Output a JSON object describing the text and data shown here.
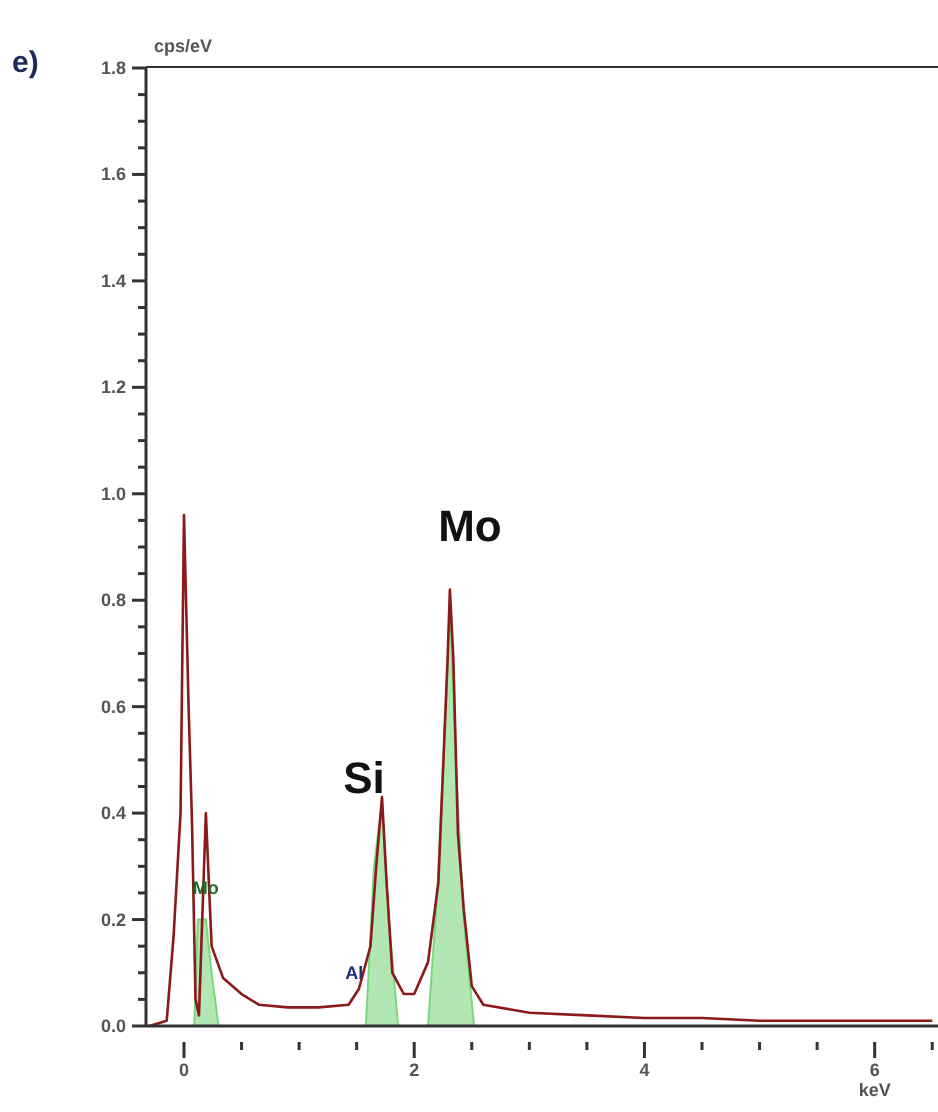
{
  "chart_data": {
    "type": "line",
    "xlabel": "keV",
    "ylabel": "cps/eV",
    "annotations": [
      "e)",
      {
        "text": "Mo",
        "x": 2.31,
        "y": 0.82
      },
      {
        "text": "Si",
        "x": 1.72,
        "y": 0.43
      },
      {
        "text": "Mo",
        "x": 0.19,
        "y": 0.26
      },
      {
        "text": "Al",
        "x": 1.48,
        "y": 0.1
      }
    ],
    "series": [
      {
        "type": "area",
        "color": "#7ed67e",
        "x": [
          0.09,
          0.12,
          0.19,
          0.24,
          0.3,
          1.58,
          1.65,
          1.72,
          1.78,
          1.86,
          2.12,
          2.2,
          2.29,
          2.31,
          2.36,
          2.43,
          2.52
        ],
        "values": [
          0,
          0.2,
          0.2,
          0.1,
          0,
          0,
          0.3,
          0.42,
          0.2,
          0,
          0,
          0.25,
          0.68,
          0.8,
          0.5,
          0.2,
          0
        ]
      },
      {
        "color": "#8b1a1a",
        "x": [
          -0.3,
          -0.15,
          -0.09,
          -0.03,
          0,
          0.04,
          0.07,
          0.1,
          0.13,
          0.19,
          0.24,
          0.34,
          0.5,
          0.65,
          0.9,
          1.17,
          1.43,
          1.52,
          1.62,
          1.67,
          1.72,
          1.76,
          1.81,
          1.91,
          2.0,
          2.12,
          2.21,
          2.29,
          2.31,
          2.34,
          2.38,
          2.43,
          2.5,
          2.6,
          3.0,
          3.5,
          4.0,
          4.5,
          5.0,
          5.5,
          6.0,
          6.5
        ],
        "values": [
          0,
          0.01,
          0.17,
          0.4,
          0.96,
          0.6,
          0.38,
          0.05,
          0.02,
          0.4,
          0.15,
          0.09,
          0.06,
          0.04,
          0.035,
          0.035,
          0.04,
          0.07,
          0.15,
          0.3,
          0.43,
          0.27,
          0.1,
          0.06,
          0.06,
          0.12,
          0.27,
          0.69,
          0.82,
          0.69,
          0.36,
          0.22,
          0.075,
          0.04,
          0.025,
          0.02,
          0.015,
          0.015,
          0.01,
          0.01,
          0.01,
          0.01
        ]
      }
    ],
    "xlim": [
      -0.33,
      6.55
    ],
    "xticks": [
      0,
      {
        "value": 0.5,
        "label": null
      },
      {
        "value": 1,
        "label": null
      },
      {
        "value": 1.5,
        "label": null
      },
      2,
      {
        "value": 2.5,
        "label": null
      },
      {
        "value": 3,
        "label": null
      },
      {
        "value": 3.5,
        "label": null
      },
      4,
      {
        "value": 4.5,
        "label": null
      },
      {
        "value": 5,
        "label": null
      },
      {
        "value": 5.5,
        "label": null
      },
      6,
      {
        "value": 6.5,
        "label": null
      }
    ],
    "ylim": [
      0,
      1.8
    ],
    "yticks": [
      {
        "value": 0,
        "label": "0.0"
      },
      {
        "value": 0.05,
        "label": null
      },
      {
        "value": 0.1,
        "label": null
      },
      {
        "value": 0.15,
        "label": null
      },
      {
        "value": 0.2,
        "label": "0.2"
      },
      {
        "value": 0.25,
        "label": null
      },
      {
        "value": 0.3,
        "label": null
      },
      {
        "value": 0.35,
        "label": null
      },
      {
        "value": 0.4,
        "label": "0.4"
      },
      {
        "value": 0.45,
        "label": null
      },
      {
        "value": 0.5,
        "label": null
      },
      {
        "value": 0.55,
        "label": null
      },
      {
        "value": 0.6,
        "label": "0.6"
      },
      {
        "value": 0.65,
        "label": null
      },
      {
        "value": 0.7,
        "label": null
      },
      {
        "value": 0.75,
        "label": null
      },
      {
        "value": 0.8,
        "label": "0.8"
      },
      {
        "value": 0.85,
        "label": null
      },
      {
        "value": 0.9,
        "label": null
      },
      {
        "value": 0.95,
        "label": null
      },
      {
        "value": 1,
        "label": "1.0"
      },
      {
        "value": 1.05,
        "label": null
      },
      {
        "value": 1.1,
        "label": null
      },
      {
        "value": 1.15,
        "label": null
      },
      {
        "value": 1.2,
        "label": "1.2"
      },
      {
        "value": 1.25,
        "label": null
      },
      {
        "value": 1.3,
        "label": null
      },
      {
        "value": 1.35,
        "label": null
      },
      {
        "value": 1.4,
        "label": "1.4"
      },
      {
        "value": 1.45,
        "label": null
      },
      {
        "value": 1.5,
        "label": null
      },
      {
        "value": 1.55,
        "label": null
      },
      {
        "value": 1.6,
        "label": "1.6"
      },
      {
        "value": 1.65,
        "label": null
      },
      {
        "value": 1.7,
        "label": null
      },
      {
        "value": 1.75,
        "label": null
      },
      {
        "value": 1.8,
        "label": "1.8"
      }
    ],
    "grid": false,
    "legend": false
  }
}
